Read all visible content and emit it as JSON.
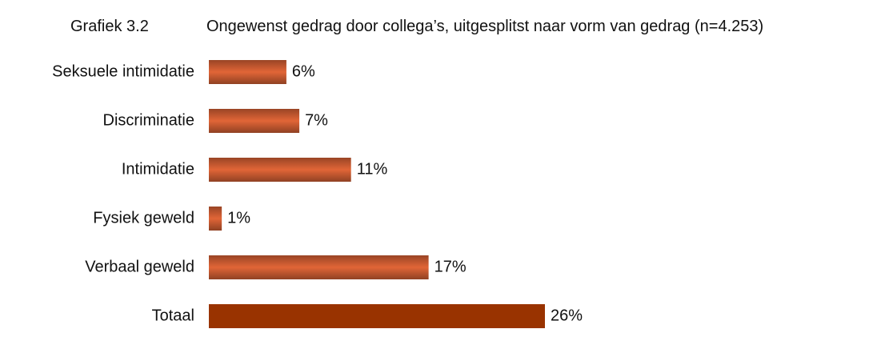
{
  "chart_data": {
    "type": "barh",
    "label": "Grafiek 3.2",
    "title": "Ongewenst gedrag door collega’s, uitgesplitst naar vorm van gedrag (n=4.253)",
    "categories": [
      "Seksuele intimidatie",
      "Discriminatie",
      "Intimidatie",
      "Fysiek geweld",
      "Verbaal geweld",
      "Totaal"
    ],
    "values": [
      6,
      7,
      11,
      1,
      17,
      26
    ],
    "value_labels": [
      "6%",
      "7%",
      "11%",
      "1%",
      "17%",
      "26%"
    ],
    "colors": [
      "#b4512c",
      "#b4512c",
      "#b4512c",
      "#b4512c",
      "#b4512c",
      "#993300"
    ],
    "shaded": [
      true,
      true,
      true,
      true,
      true,
      false
    ]
  }
}
